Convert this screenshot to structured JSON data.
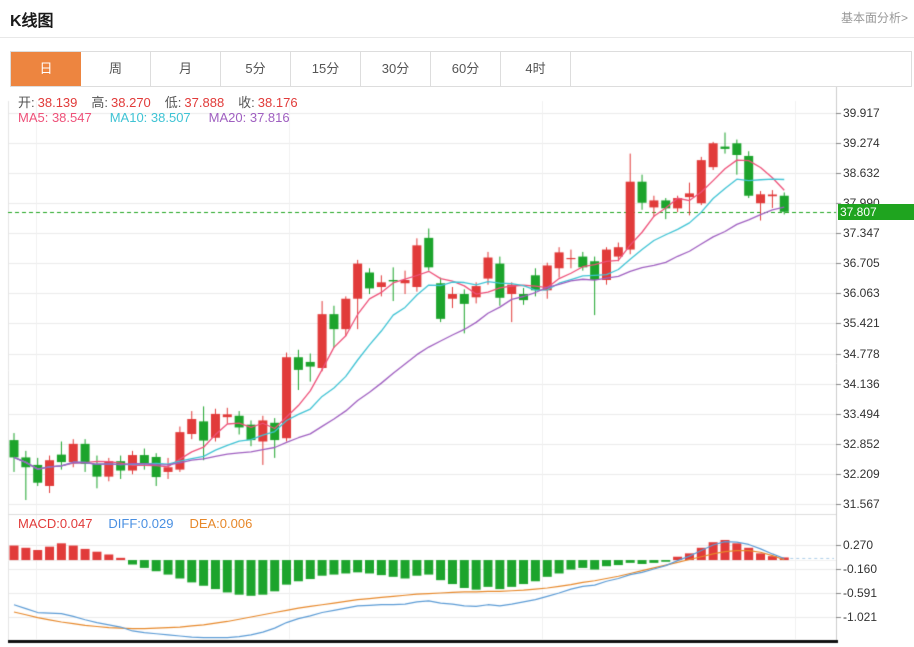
{
  "header": {
    "title": "K线图",
    "more_link": "基本面分析>"
  },
  "tabs": {
    "active_index": 0,
    "items": [
      {
        "id": "day",
        "label": "日"
      },
      {
        "id": "week",
        "label": "周"
      },
      {
        "id": "month",
        "label": "月"
      },
      {
        "id": "5min",
        "label": "5分"
      },
      {
        "id": "15min",
        "label": "15分"
      },
      {
        "id": "30min",
        "label": "30分"
      },
      {
        "id": "60min",
        "label": "60分"
      },
      {
        "id": "4hour",
        "label": "4时"
      }
    ]
  },
  "ohlc": {
    "open_label": "开:",
    "open": "38.139",
    "high_label": "高:",
    "high": "38.270",
    "low_label": "低:",
    "low": "37.888",
    "close_label": "收:",
    "close": "38.176"
  },
  "ma_legend": [
    {
      "id": "ma5",
      "label": "MA5:",
      "value": "38.547"
    },
    {
      "id": "ma10",
      "label": "MA10:",
      "value": "38.507"
    },
    {
      "id": "ma20",
      "label": "MA20:",
      "value": "37.816"
    }
  ],
  "macd_legend": [
    {
      "id": "macd",
      "label": "MACD:",
      "value": "0.047"
    },
    {
      "id": "diff",
      "label": "DIFF:",
      "value": "0.029"
    },
    {
      "id": "dea",
      "label": "DEA:",
      "value": "0.006"
    }
  ],
  "chart_data": {
    "type": "candlestick",
    "title": "K线图",
    "interval": "日",
    "grid": true,
    "main": {
      "y_ticks": [
        39.917,
        39.274,
        38.632,
        37.99,
        37.347,
        36.705,
        36.063,
        35.421,
        34.778,
        34.136,
        33.494,
        32.852,
        32.209,
        31.567
      ],
      "last_price": 37.807,
      "last_price_label": "37.807",
      "ma_periods": [
        5,
        10,
        20
      ],
      "candles_ohlc": [
        [
          32.93,
          33.08,
          32.25,
          32.56
        ],
        [
          32.56,
          32.7,
          31.65,
          32.35
        ],
        [
          32.4,
          32.55,
          31.95,
          32.02
        ],
        [
          31.95,
          32.6,
          31.8,
          32.5
        ],
        [
          32.62,
          32.9,
          32.3,
          32.46
        ],
        [
          32.46,
          32.95,
          32.35,
          32.85
        ],
        [
          32.85,
          32.95,
          32.25,
          32.42
        ],
        [
          32.42,
          32.6,
          31.9,
          32.15
        ],
        [
          32.15,
          32.55,
          32.05,
          32.48
        ],
        [
          32.48,
          32.6,
          32.1,
          32.28
        ],
        [
          32.28,
          32.7,
          32.2,
          32.61
        ],
        [
          32.61,
          32.75,
          32.3,
          32.42
        ],
        [
          32.57,
          32.65,
          31.95,
          32.14
        ],
        [
          32.25,
          32.55,
          32.1,
          32.35
        ],
        [
          32.3,
          33.22,
          32.25,
          33.1
        ],
        [
          33.06,
          33.55,
          32.95,
          33.38
        ],
        [
          33.33,
          33.65,
          32.5,
          32.92
        ],
        [
          32.98,
          33.6,
          32.9,
          33.49
        ],
        [
          33.42,
          33.62,
          33.28,
          33.48
        ],
        [
          33.45,
          33.55,
          33.05,
          33.2
        ],
        [
          33.26,
          33.35,
          32.8,
          32.93
        ],
        [
          32.9,
          33.45,
          32.4,
          33.35
        ],
        [
          33.3,
          33.4,
          32.55,
          32.93
        ],
        [
          32.97,
          34.8,
          32.9,
          34.7
        ],
        [
          34.7,
          34.86,
          34.0,
          34.43
        ],
        [
          34.6,
          34.78,
          34.18,
          34.5
        ],
        [
          34.47,
          35.9,
          34.4,
          35.62
        ],
        [
          35.62,
          35.8,
          34.9,
          35.3
        ],
        [
          35.3,
          36.0,
          35.15,
          35.95
        ],
        [
          35.95,
          36.78,
          35.3,
          36.7
        ],
        [
          36.51,
          36.6,
          36.05,
          36.17
        ],
        [
          36.2,
          36.45,
          36.0,
          36.3
        ],
        [
          36.35,
          36.62,
          35.9,
          36.32
        ],
        [
          36.28,
          36.55,
          36.05,
          36.35
        ],
        [
          36.2,
          37.24,
          36.1,
          37.09
        ],
        [
          37.25,
          37.45,
          36.55,
          36.62
        ],
        [
          36.28,
          36.4,
          35.45,
          35.52
        ],
        [
          35.95,
          36.2,
          35.75,
          36.05
        ],
        [
          36.05,
          36.15,
          35.21,
          35.84
        ],
        [
          35.98,
          36.3,
          35.85,
          36.22
        ],
        [
          36.38,
          36.95,
          36.25,
          36.83
        ],
        [
          36.7,
          36.85,
          35.8,
          35.97
        ],
        [
          36.05,
          36.3,
          35.45,
          36.25
        ],
        [
          36.05,
          36.18,
          35.82,
          35.92
        ],
        [
          36.45,
          36.6,
          36.0,
          36.13
        ],
        [
          36.13,
          36.72,
          35.95,
          36.66
        ],
        [
          36.6,
          37.05,
          36.4,
          36.94
        ],
        [
          36.8,
          37.0,
          36.6,
          36.82
        ],
        [
          36.85,
          36.95,
          36.55,
          36.62
        ],
        [
          36.75,
          36.85,
          35.6,
          36.35
        ],
        [
          36.35,
          37.05,
          36.25,
          37.0
        ],
        [
          36.85,
          37.15,
          36.75,
          37.05
        ],
        [
          37.0,
          39.05,
          36.9,
          38.45
        ],
        [
          38.45,
          38.6,
          37.85,
          38.0
        ],
        [
          37.9,
          38.15,
          37.7,
          38.05
        ],
        [
          38.05,
          38.1,
          37.65,
          37.88
        ],
        [
          37.88,
          38.15,
          37.8,
          38.1
        ],
        [
          38.12,
          38.43,
          37.73,
          38.2
        ],
        [
          37.99,
          38.98,
          37.95,
          38.91
        ],
        [
          38.76,
          39.3,
          38.7,
          39.27
        ],
        [
          39.2,
          39.5,
          39.05,
          39.15
        ],
        [
          39.27,
          39.35,
          38.6,
          39.02
        ],
        [
          39.0,
          39.1,
          38.1,
          38.15
        ],
        [
          37.99,
          38.25,
          37.62,
          38.18
        ],
        [
          38.139,
          38.27,
          37.888,
          38.176
        ],
        [
          38.15,
          38.22,
          37.75,
          37.807
        ]
      ]
    },
    "macd": {
      "y_ticks": [
        0.27,
        -0.16,
        -0.591,
        -1.021
      ],
      "histogram": [
        0.26,
        0.22,
        0.18,
        0.24,
        0.3,
        0.26,
        0.2,
        0.15,
        0.1,
        0.04,
        -0.08,
        -0.14,
        -0.2,
        -0.26,
        -0.33,
        -0.4,
        -0.46,
        -0.52,
        -0.58,
        -0.62,
        -0.64,
        -0.62,
        -0.56,
        -0.44,
        -0.38,
        -0.34,
        -0.28,
        -0.26,
        -0.24,
        -0.22,
        -0.24,
        -0.27,
        -0.3,
        -0.33,
        -0.28,
        -0.26,
        -0.36,
        -0.43,
        -0.5,
        -0.53,
        -0.48,
        -0.52,
        -0.48,
        -0.43,
        -0.38,
        -0.3,
        -0.24,
        -0.17,
        -0.14,
        -0.17,
        -0.11,
        -0.09,
        -0.05,
        -0.07,
        -0.05,
        -0.03,
        0.06,
        0.12,
        0.22,
        0.32,
        0.36,
        0.3,
        0.22,
        0.12,
        0.07,
        0.047
      ],
      "diff": [
        -0.8,
        -0.87,
        -0.94,
        -0.95,
        -0.96,
        -1.01,
        -1.07,
        -1.12,
        -1.16,
        -1.2,
        -1.27,
        -1.3,
        -1.32,
        -1.34,
        -1.36,
        -1.38,
        -1.39,
        -1.39,
        -1.39,
        -1.37,
        -1.34,
        -1.29,
        -1.22,
        -1.12,
        -1.05,
        -1.0,
        -0.94,
        -0.9,
        -0.86,
        -0.82,
        -0.81,
        -0.8,
        -0.8,
        -0.79,
        -0.75,
        -0.73,
        -0.77,
        -0.79,
        -0.82,
        -0.83,
        -0.8,
        -0.82,
        -0.79,
        -0.75,
        -0.71,
        -0.65,
        -0.59,
        -0.52,
        -0.47,
        -0.45,
        -0.38,
        -0.33,
        -0.26,
        -0.22,
        -0.16,
        -0.1,
        -0.01,
        0.07,
        0.17,
        0.27,
        0.33,
        0.32,
        0.28,
        0.2,
        0.11,
        0.029
      ],
      "dea": [
        -0.93,
        -0.98,
        -1.03,
        -1.07,
        -1.11,
        -1.14,
        -1.17,
        -1.19,
        -1.21,
        -1.22,
        -1.23,
        -1.23,
        -1.22,
        -1.21,
        -1.2,
        -1.18,
        -1.16,
        -1.13,
        -1.1,
        -1.06,
        -1.02,
        -0.98,
        -0.94,
        -0.9,
        -0.86,
        -0.83,
        -0.8,
        -0.77,
        -0.74,
        -0.71,
        -0.69,
        -0.67,
        -0.65,
        -0.63,
        -0.61,
        -0.6,
        -0.59,
        -0.58,
        -0.57,
        -0.57,
        -0.56,
        -0.56,
        -0.55,
        -0.54,
        -0.52,
        -0.5,
        -0.47,
        -0.44,
        -0.4,
        -0.37,
        -0.33,
        -0.29,
        -0.24,
        -0.19,
        -0.14,
        -0.09,
        -0.04,
        0.01,
        0.06,
        0.11,
        0.15,
        0.17,
        0.17,
        0.14,
        0.08,
        0.006
      ]
    },
    "colors": {
      "up": "#e13b3a",
      "down": "#1ca42c",
      "ma5": "#ee5179",
      "ma10": "#3fc3d4",
      "ma20": "#9f5fc0",
      "diff_line": "#5b9bd5",
      "dea_line": "#e7882a",
      "macd_label": "#e13b3a",
      "diff_label": "#4a90e2",
      "dea_label": "#e7882a",
      "price_tag_bg": "#1fa41f",
      "tab_active_bg": "#ed8540",
      "grid": "#ebebeb",
      "axis_line": "#cccccc",
      "axis_text": "#333333"
    }
  }
}
